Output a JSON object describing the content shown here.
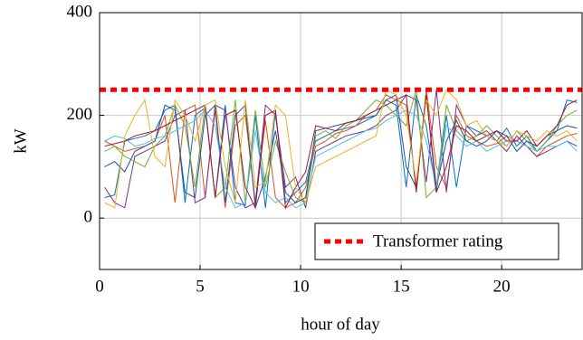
{
  "chart_data": {
    "type": "line",
    "x_label": "hour of day",
    "y_label": "kW",
    "xlim": [
      0,
      24
    ],
    "ylim": [
      -100,
      400
    ],
    "xticks": [
      0,
      5,
      10,
      15,
      20
    ],
    "yticks": [
      0,
      200,
      400
    ],
    "grid": true,
    "legend": "lower right",
    "reference_line": {
      "name": "Transformer rating",
      "value": 250,
      "color": "#ff0000"
    },
    "x": [
      0.25,
      0.75,
      1.25,
      1.75,
      2.25,
      2.75,
      3.25,
      3.75,
      4.25,
      4.75,
      5.25,
      5.75,
      6.25,
      6.75,
      7.25,
      7.75,
      8.25,
      8.75,
      9.25,
      9.75,
      10.25,
      10.75,
      11.25,
      11.75,
      12.25,
      12.75,
      13.25,
      13.75,
      14.25,
      14.75,
      15.25,
      15.75,
      16.25,
      16.75,
      17.25,
      17.75,
      18.25,
      18.75,
      19.25,
      19.75,
      20.25,
      20.75,
      21.25,
      21.75,
      22.25,
      22.75,
      23.25,
      23.75
    ],
    "series": [
      {
        "color": "#0072bd",
        "values": [
          40,
          45,
          150,
          155,
          160,
          170,
          210,
          220,
          30,
          200,
          215,
          40,
          220,
          30,
          25,
          200,
          20,
          210,
          30,
          50,
          70,
          150,
          160,
          170,
          175,
          180,
          190,
          200,
          230,
          220,
          60,
          240,
          180,
          50,
          200,
          60,
          180,
          170,
          160,
          150,
          175,
          140,
          160,
          130,
          150,
          170,
          230,
          225
        ]
      },
      {
        "color": "#d95319",
        "values": [
          150,
          140,
          130,
          135,
          140,
          150,
          200,
          30,
          210,
          220,
          40,
          210,
          20,
          180,
          200,
          30,
          190,
          40,
          20,
          30,
          60,
          140,
          150,
          165,
          170,
          180,
          200,
          210,
          240,
          230,
          220,
          60,
          250,
          100,
          60,
          200,
          160,
          150,
          140,
          145,
          160,
          150,
          140,
          120,
          140,
          150,
          160,
          165
        ]
      },
      {
        "color": "#7e2f8e",
        "values": [
          60,
          30,
          20,
          120,
          130,
          140,
          150,
          200,
          210,
          30,
          40,
          220,
          210,
          60,
          20,
          30,
          220,
          200,
          60,
          80,
          20,
          130,
          140,
          150,
          160,
          165,
          170,
          180,
          200,
          210,
          240,
          230,
          70,
          250,
          50,
          220,
          180,
          160,
          170,
          150,
          130,
          160,
          140,
          120,
          130,
          140,
          150,
          140
        ]
      },
      {
        "color": "#77ac30",
        "values": [
          130,
          140,
          120,
          110,
          100,
          140,
          160,
          220,
          180,
          60,
          220,
          40,
          60,
          230,
          30,
          210,
          60,
          150,
          90,
          40,
          30,
          160,
          170,
          155,
          180,
          190,
          210,
          230,
          220,
          200,
          180,
          250,
          40,
          60,
          220,
          170,
          150,
          160,
          180,
          160,
          140,
          170,
          150,
          130,
          150,
          180,
          200,
          210
        ]
      },
      {
        "color": "#1f4fa0",
        "values": [
          100,
          110,
          90,
          130,
          140,
          150,
          220,
          210,
          50,
          40,
          200,
          220,
          30,
          200,
          220,
          20,
          80,
          170,
          50,
          30,
          40,
          170,
          175,
          180,
          185,
          190,
          195,
          200,
          230,
          240,
          100,
          60,
          240,
          60,
          150,
          190,
          150,
          140,
          150,
          170,
          160,
          130,
          150,
          140,
          160,
          170,
          180,
          175
        ]
      },
      {
        "color": "#4dbeee",
        "values": [
          150,
          160,
          155,
          140,
          145,
          155,
          160,
          170,
          180,
          190,
          210,
          180,
          60,
          20,
          30,
          170,
          50,
          30,
          40,
          20,
          30,
          120,
          130,
          140,
          150,
          160,
          170,
          175,
          190,
          200,
          210,
          200,
          150,
          60,
          180,
          160,
          140,
          150,
          130,
          140,
          150,
          150,
          140,
          130,
          140,
          140,
          150,
          130
        ]
      },
      {
        "color": "#a2142f",
        "values": [
          140,
          145,
          150,
          160,
          165,
          170,
          180,
          190,
          200,
          210,
          220,
          40,
          200,
          210,
          60,
          20,
          200,
          210,
          20,
          60,
          90,
          180,
          175,
          170,
          185,
          190,
          200,
          210,
          220,
          230,
          240,
          50,
          240,
          50,
          100,
          180,
          170,
          150,
          160,
          170,
          150,
          150,
          170,
          140,
          160,
          180,
          220,
          230
        ]
      },
      {
        "color": "#edb120",
        "values": [
          30,
          20,
          160,
          200,
          230,
          120,
          100,
          230,
          200,
          150,
          220,
          230,
          100,
          30,
          230,
          60,
          70,
          220,
          200,
          60,
          30,
          100,
          110,
          120,
          130,
          140,
          150,
          160,
          250,
          240,
          200,
          70,
          230,
          200,
          250,
          230,
          180,
          190,
          160,
          150,
          140,
          170,
          160,
          150,
          170,
          160,
          170,
          150
        ]
      }
    ]
  }
}
